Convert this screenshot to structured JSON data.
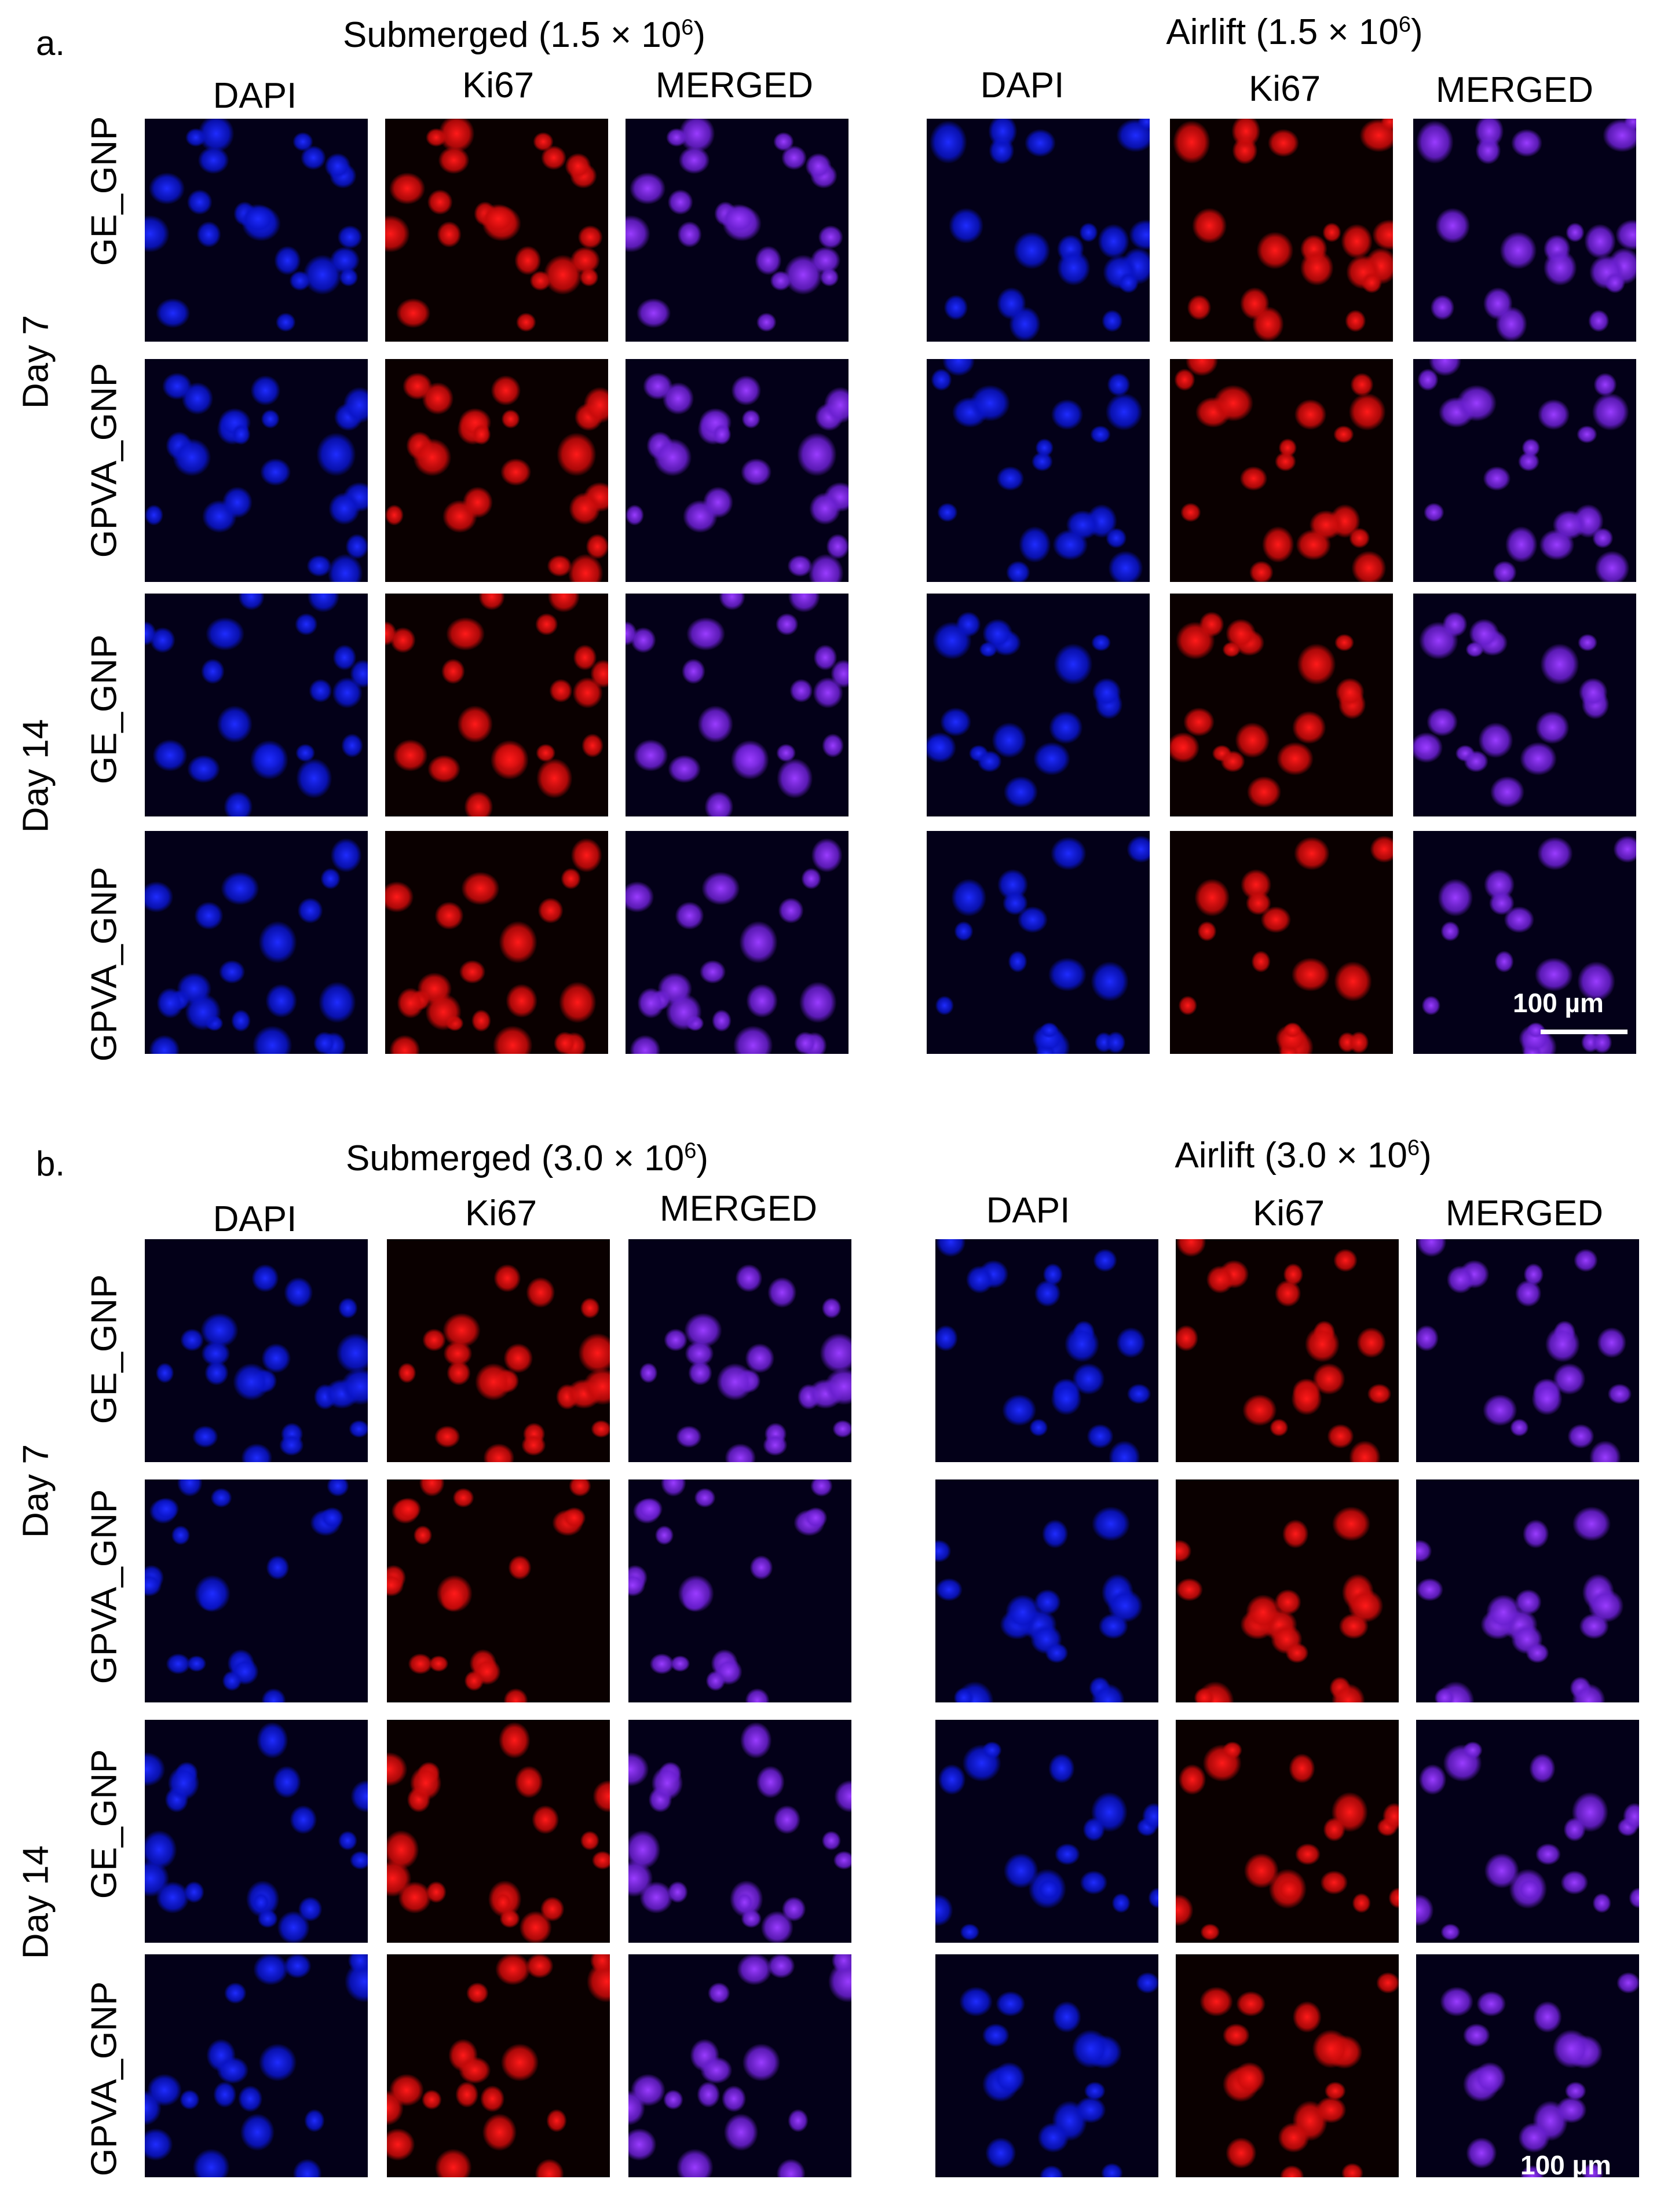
{
  "figure": {
    "panels": [
      {
        "id": "a",
        "letter": "a.",
        "groups": [
          {
            "title": "Submerged (1.5 × 10",
            "exp": "6",
            "close": ")"
          },
          {
            "title": "Airlift (1.5 × 10",
            "exp": "6",
            "close": ")"
          }
        ],
        "columns": [
          [
            "DAPI",
            "Ki67",
            "MERGED"
          ],
          [
            "DAPI",
            "Ki67",
            "MERGED"
          ]
        ],
        "days": [
          "Day 7",
          "Day 14"
        ],
        "rows": [
          "GE_GNP",
          "GPVA_GNP",
          "GE_GNP",
          "GPVA_GNP"
        ],
        "scale_bar": "100 µm"
      },
      {
        "id": "b",
        "letter": "b.",
        "groups": [
          {
            "title": "Submerged (3.0 × 10",
            "exp": "6",
            "close": ")"
          },
          {
            "title": "Airlift (3.0 × 10",
            "exp": "6",
            "close": ")"
          }
        ],
        "columns": [
          [
            "DAPI",
            "Ki67",
            "MERGED"
          ],
          [
            "DAPI",
            "Ki67",
            "MERGED"
          ]
        ],
        "days": [
          "Day 7",
          "Day 14"
        ],
        "rows": [
          "GE_GNP",
          "GPVA_GNP",
          "GE_GNP",
          "GPVA_GNP"
        ],
        "scale_bar": "100 µm"
      }
    ],
    "channel_colors": {
      "DAPI": "#1f2cff",
      "Ki67": "#ff1a1a",
      "MERGED": "#9a3cff",
      "background": "#05030d"
    }
  }
}
